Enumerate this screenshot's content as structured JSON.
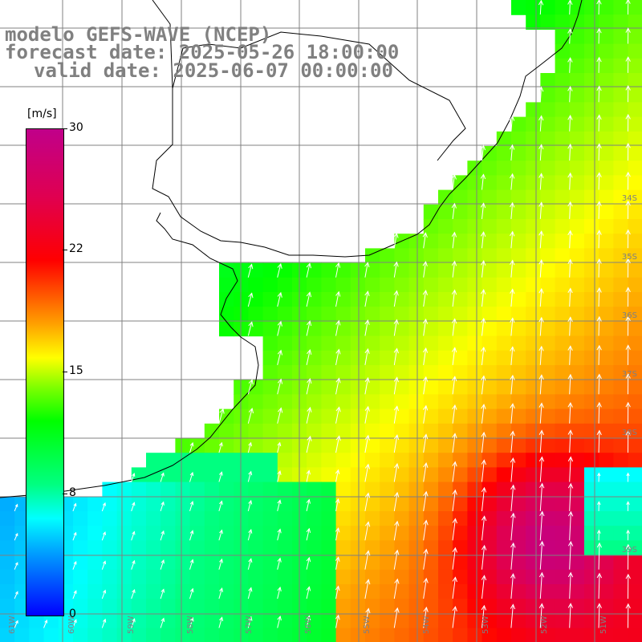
{
  "header": {
    "line1": "modelo GEFS-WAVE (NCEP)",
    "line2": "forecast date: 2025-05-26 18:00:00",
    "line3": "valid date: 2025-06-07 00:00:00"
  },
  "colorbar": {
    "unit": "[m/s]",
    "labels": [
      "30",
      "22",
      "15",
      "8",
      "0"
    ]
  },
  "map": {
    "lat_labels": [
      "34S",
      "35S",
      "36S",
      "37S",
      "38S",
      "39S"
    ],
    "lon_labels": [
      "61W",
      "60W",
      "59W",
      "58W",
      "57W",
      "56W",
      "55W",
      "54W",
      "53W",
      "52W",
      "51W"
    ],
    "land_color": "#ffffff",
    "grid_color": "#808080",
    "coast_color": "#000000",
    "arrow_color": "#ffffff"
  }
}
